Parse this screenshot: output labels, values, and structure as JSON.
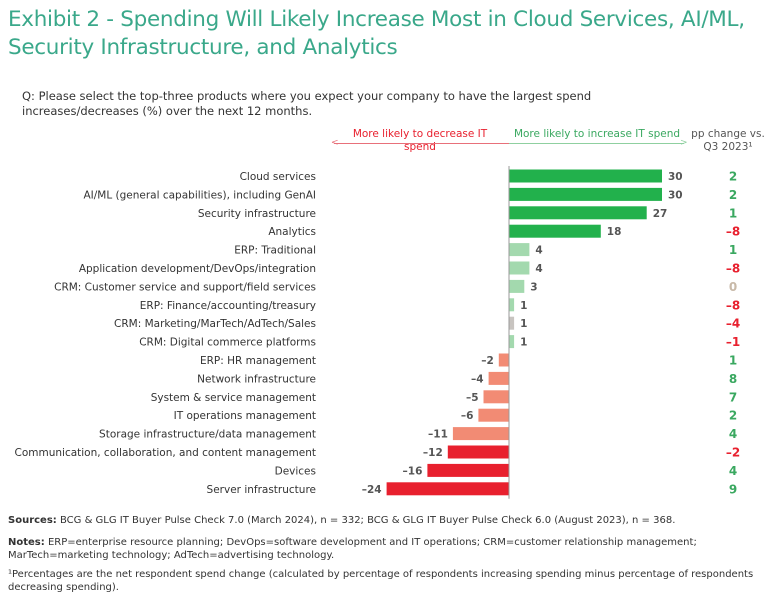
{
  "title": "Exhibit 2 - Spending Will Likely Increase Most in Cloud Services, AI/ML, Security Infrastructure, and Analytics",
  "question": "Q: Please select the top-three products where you expect your company to have the largest spend increases/decreases (%) over the next 12 months.",
  "headers": {
    "decrease": "More likely to decrease IT spend",
    "increase": "More likely to increase IT spend",
    "pp_change": "pp change vs. Q3 2023¹"
  },
  "colors": {
    "title": "#3aa88a",
    "strong_green": "#22b14c",
    "light_green": "#a3d9ae",
    "gray": "#c8c4c0",
    "salmon": "#f28b74",
    "red": "#e8202e",
    "pp_positive": "#3aa860",
    "pp_negative": "#e8202e",
    "pp_zero": "#c8b9a8"
  },
  "chart_data": {
    "type": "bar",
    "orientation": "horizontal",
    "categories": [
      "Cloud services",
      "AI/ML (general capabilities), including GenAI",
      "Security infrastructure",
      "Analytics",
      "ERP: Traditional",
      "Application development/DevOps/integration",
      "CRM: Customer service and support/field services",
      "ERP: Finance/accounting/treasury",
      "CRM: Marketing/MarTech/AdTech/Sales",
      "CRM: Digital commerce platforms",
      "ERP: HR management",
      "Network infrastructure",
      "System & service management",
      "IT operations management",
      "Storage infrastructure/data management",
      "Communication, collaboration, and content management",
      "Devices",
      "Server infrastructure"
    ],
    "values": [
      30,
      30,
      27,
      18,
      4,
      4,
      3,
      1,
      1,
      1,
      -2,
      -4,
      -5,
      -6,
      -11,
      -12,
      -16,
      -24
    ],
    "value_labels": [
      "30",
      "30",
      "27",
      "18",
      "4",
      "4",
      "3",
      "1",
      "1",
      "1",
      "–2",
      "–4",
      "–5",
      "–6",
      "–11",
      "–12",
      "–16",
      "–24"
    ],
    "bar_color_keys": [
      "strong_green",
      "strong_green",
      "strong_green",
      "strong_green",
      "light_green",
      "light_green",
      "light_green",
      "light_green",
      "gray",
      "light_green",
      "salmon",
      "salmon",
      "salmon",
      "salmon",
      "salmon",
      "red",
      "red",
      "red"
    ],
    "pp_change": [
      2,
      2,
      1,
      -8,
      1,
      -8,
      0,
      -8,
      -4,
      -1,
      1,
      8,
      7,
      2,
      4,
      -2,
      4,
      9
    ],
    "pp_change_labels": [
      "2",
      "2",
      "1",
      "–8",
      "1",
      "–8",
      "0",
      "–8",
      "–4",
      "–1",
      "1",
      "8",
      "7",
      "2",
      "4",
      "–2",
      "4",
      "9"
    ],
    "xlim": [
      -24,
      30
    ]
  },
  "footer": {
    "sources_label": "Sources:",
    "sources": " BCG & GLG IT Buyer Pulse Check 7.0 (March 2024), n = 332; BCG & GLG IT Buyer Pulse Check 6.0 (August 2023), n = 368.",
    "notes_label": "Notes:",
    "notes": " ERP=enterprise resource planning; DevOps=software development and IT operations; CRM=customer relationship management; MarTech=marketing technology; AdTech=advertising technology.",
    "footnote": "¹Percentages are the net respondent spend change (calculated by percentage of respondents increasing spending minus percentage of respondents decreasing spending)."
  }
}
